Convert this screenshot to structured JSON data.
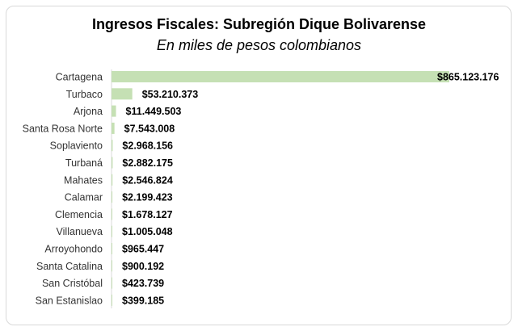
{
  "chart_data": {
    "type": "bar",
    "orientation": "horizontal",
    "title": "Ingresos Fiscales: Subregión Dique Bolivarense",
    "subtitle": "En miles de pesos colombianos",
    "xlabel": "",
    "ylabel": "",
    "grid": false,
    "legend": "none",
    "bar_color": "#c5e0b4",
    "categories": [
      "Cartagena",
      "Turbaco",
      "Arjona",
      "Santa Rosa Norte",
      "Soplaviento",
      "Turbaná",
      "Mahates",
      "Calamar",
      "Clemencia",
      "Villanueva",
      "Arroyohondo",
      "Santa Catalina",
      "San Cristóbal",
      "San Estanislao"
    ],
    "values": [
      865123176,
      53210373,
      11449503,
      7543008,
      2968156,
      2882175,
      2546824,
      2199423,
      1678127,
      1005048,
      965447,
      900192,
      423739,
      399185
    ],
    "labels": [
      "$865.123.176",
      "$53.210.373",
      "$11.449.503",
      "$7.543.008",
      "$2.968.156",
      "$2.882.175",
      "$2.546.824",
      "$2.199.423",
      "$1.678.127",
      "$1.005.048",
      "$965.447",
      "$900.192",
      "$423.739",
      "$399.185"
    ]
  }
}
